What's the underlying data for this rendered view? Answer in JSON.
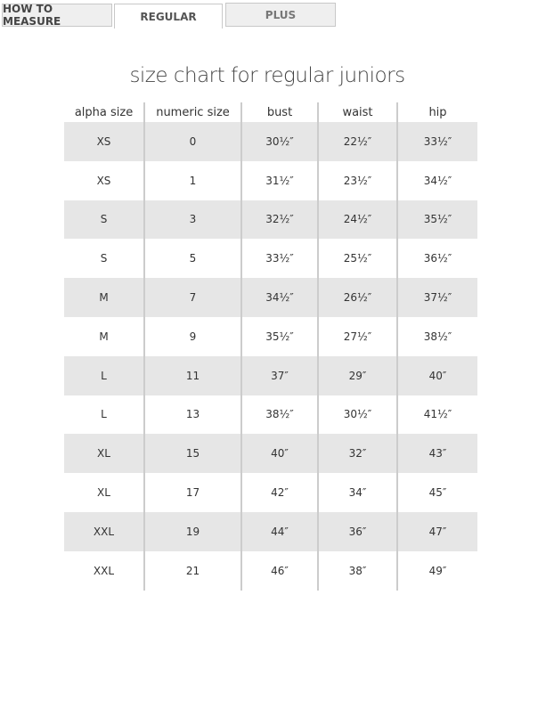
{
  "tabs": [
    {
      "label": "HOW TO MEASURE"
    },
    {
      "label": "REGULAR",
      "active": true
    },
    {
      "label": "PLUS"
    }
  ],
  "title": "size chart for regular juniors",
  "table": {
    "headers": [
      "alpha size",
      "numeric size",
      "bust",
      "waist",
      "hip"
    ],
    "rows": [
      [
        "XS",
        "0",
        "30½″",
        "22½″",
        "33½″"
      ],
      [
        "XS",
        "1",
        "31½″",
        "23½″",
        "34½″"
      ],
      [
        "S",
        "3",
        "32½″",
        "24½″",
        "35½″"
      ],
      [
        "S",
        "5",
        "33½″",
        "25½″",
        "36½″"
      ],
      [
        "M",
        "7",
        "34½″",
        "26½″",
        "37½″"
      ],
      [
        "M",
        "9",
        "35½″",
        "27½″",
        "38½″"
      ],
      [
        "L",
        "11",
        "37″",
        "29″",
        "40″"
      ],
      [
        "L",
        "13",
        "38½″",
        "30½″",
        "41½″"
      ],
      [
        "XL",
        "15",
        "40″",
        "32″",
        "43″"
      ],
      [
        "XL",
        "17",
        "42″",
        "34″",
        "45″"
      ],
      [
        "XXL",
        "19",
        "44″",
        "36″",
        "47″"
      ],
      [
        "XXL",
        "21",
        "46″",
        "38″",
        "49″"
      ]
    ]
  }
}
